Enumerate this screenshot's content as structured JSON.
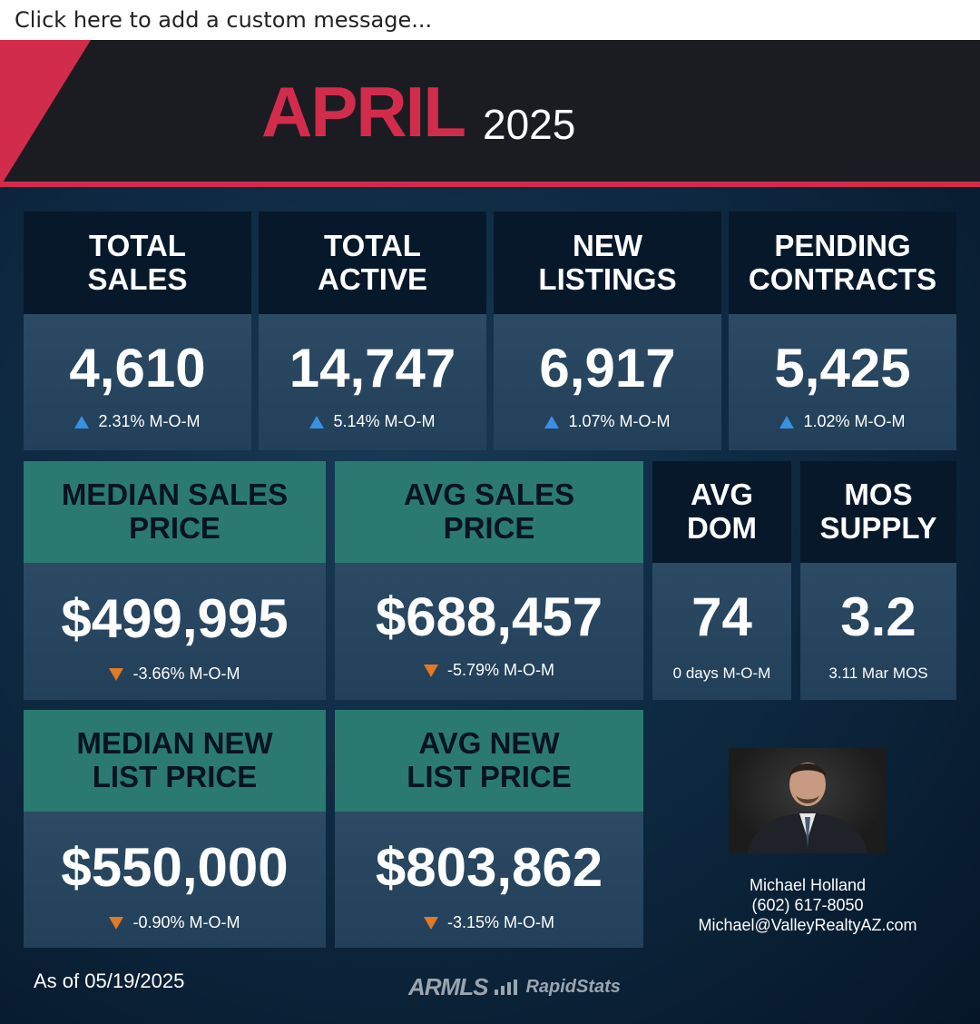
{
  "message_bar": {
    "placeholder": "Click here to add a custom message..."
  },
  "header": {
    "month": "APRIL",
    "year": "2025"
  },
  "colors": {
    "accent_red": "#d22c4d",
    "teal": "#2b7a72",
    "up_arrow": "#3a8fe0",
    "down_arrow": "#e07a24"
  },
  "top_cards": [
    {
      "line1": "TOTAL",
      "line2": "SALES",
      "value": "4,610",
      "trend": "up",
      "change": "2.31% M-O-M"
    },
    {
      "line1": "TOTAL",
      "line2": "ACTIVE",
      "value": "14,747",
      "trend": "up",
      "change": "5.14% M-O-M"
    },
    {
      "line1": "NEW",
      "line2": "LISTINGS",
      "value": "6,917",
      "trend": "up",
      "change": "1.07% M-O-M"
    },
    {
      "line1": "PENDING",
      "line2": "CONTRACTS",
      "value": "5,425",
      "trend": "up",
      "change": "1.02% M-O-M"
    }
  ],
  "price_cards": [
    {
      "line1": "MEDIAN SALES",
      "line2": "PRICE",
      "value": "$499,995",
      "trend": "down",
      "change": "-3.66% M-O-M"
    },
    {
      "line1": "AVG SALES",
      "line2": "PRICE",
      "value": "$688,457",
      "trend": "down",
      "change": "-5.79% M-O-M"
    },
    {
      "line1": "MEDIAN NEW",
      "line2": "LIST PRICE",
      "value": "$550,000",
      "trend": "down",
      "change": "-0.90% M-O-M"
    },
    {
      "line1": "AVG NEW",
      "line2": "LIST PRICE",
      "value": "$803,862",
      "trend": "down",
      "change": "-3.15% M-O-M"
    }
  ],
  "small_cards": [
    {
      "line1": "AVG",
      "line2": "DOM",
      "value": "74",
      "note": "0 days M-O-M"
    },
    {
      "line1": "MOS",
      "line2": "SUPPLY",
      "value": "3.2",
      "note": "3.11 Mar MOS"
    }
  ],
  "agent": {
    "name": "Michael Holland",
    "phone": "(602) 617-8050",
    "email": "Michael@ValleyRealtyAZ.com"
  },
  "as_of": "As of 05/19/2025",
  "footer": {
    "logo1": "ARMLS",
    "logo2": "RapidStats"
  }
}
